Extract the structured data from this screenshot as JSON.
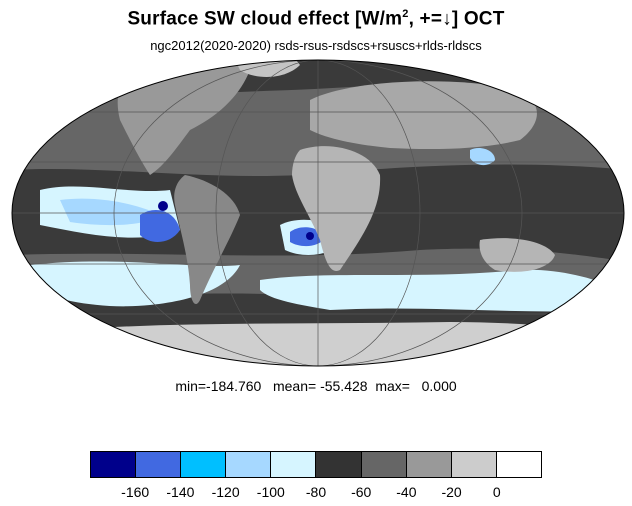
{
  "title": {
    "main": "Surface SW cloud effect [W/m",
    "sup": "2",
    "rest": ", +=↓]  OCT"
  },
  "subtitle": "ngc2012(2020-2020)  rsds-rsus-rsdscs+rsuscs+rlds-rldscs",
  "stats": "min=-184.760   mean= -55.428  max=   0.000",
  "colorbar": {
    "colors": [
      "#00008b",
      "#4169e1",
      "#00bfff",
      "#a6d8ff",
      "#d6f5ff",
      "#333333",
      "#666666",
      "#999999",
      "#cccccc",
      "#ffffff"
    ],
    "tick_labels": [
      "-160",
      "-140",
      "-120",
      "-100",
      "-80",
      "-60",
      "-40",
      "-20",
      "0"
    ]
  },
  "map_colors": {
    "ocean_dark": "#3a3a3a",
    "ocean_mid": "#666666",
    "land_light": "#b5b5b5",
    "antarctic": "#cfcfcf",
    "light_blue": "#d6f5ff",
    "mid_blue": "#a6d8ff",
    "bright_blue": "#4169e1",
    "deep_blue": "#00008b"
  }
}
